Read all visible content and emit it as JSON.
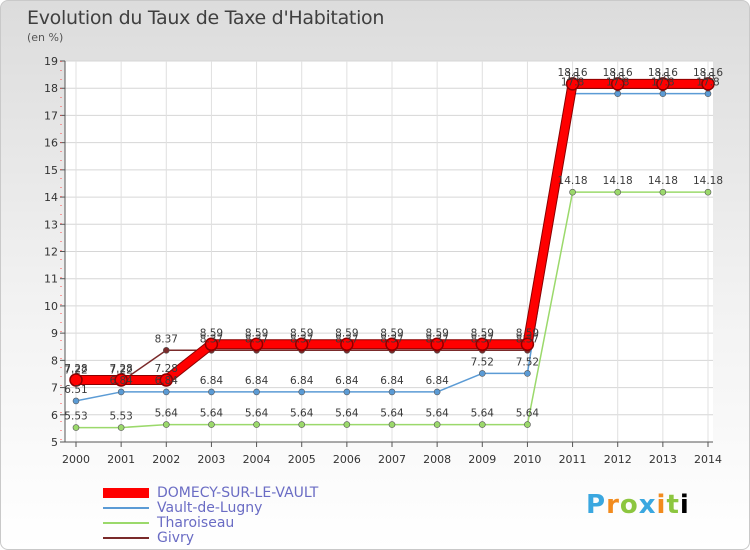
{
  "header": {
    "title": "Evolution du Taux de Taxe d'Habitation",
    "unit": "(en %)"
  },
  "brand": {
    "text": "Proxiti"
  },
  "chart_data": {
    "type": "line",
    "x": [
      2000,
      2001,
      2002,
      2003,
      2004,
      2005,
      2006,
      2007,
      2008,
      2009,
      2010,
      2011,
      2012,
      2013,
      2014
    ],
    "ylim": [
      5,
      19
    ],
    "yticks": [
      5,
      6,
      7,
      8,
      9,
      10,
      11,
      12,
      13,
      14,
      15,
      16,
      17,
      18,
      19
    ],
    "grid": true,
    "legend_position": "bottom-left",
    "series": [
      {
        "name": "DOMECY-SUR-LE-VAULT",
        "color": "#ff0000",
        "values": [
          7.28,
          7.28,
          7.28,
          8.59,
          8.59,
          8.59,
          8.59,
          8.59,
          8.59,
          8.59,
          8.59,
          18.16,
          18.16,
          18.16,
          18.16
        ]
      },
      {
        "name": "Vault-de-Lugny",
        "color": "#5b9bd5",
        "values": [
          6.51,
          6.84,
          6.84,
          6.84,
          6.84,
          6.84,
          6.84,
          6.84,
          6.84,
          7.52,
          7.52,
          17.8,
          17.8,
          17.8,
          17.8
        ]
      },
      {
        "name": "Tharoiseau",
        "color": "#9bd96b",
        "values": [
          5.53,
          5.53,
          5.64,
          5.64,
          5.64,
          5.64,
          5.64,
          5.64,
          5.64,
          5.64,
          5.64,
          14.18,
          14.18,
          14.18,
          14.18
        ]
      },
      {
        "name": "Givry",
        "color": "#7a2a2a",
        "values": [
          7.22,
          7.22,
          8.37,
          8.37,
          8.37,
          8.37,
          8.37,
          8.37,
          8.37,
          8.37,
          8.37,
          18.0,
          18.0,
          18.0,
          18.0
        ]
      }
    ],
    "labels": [
      {
        "series": 0,
        "text": [
          "7.28",
          "7.28",
          "7.28",
          "8.59",
          "8.59",
          "8.59",
          "8.59",
          "8.59",
          "8.59",
          "8.59",
          "8.59",
          "18.16",
          "18.16",
          "18.16",
          "18.16"
        ]
      },
      {
        "series": 1,
        "text": [
          "6.51",
          "6.84",
          "6.84",
          "6.84",
          "6.84",
          "6.84",
          "6.84",
          "6.84",
          "6.84",
          "7.52",
          "7.52",
          "17.8",
          "17.8",
          "17.8",
          "17.8"
        ]
      },
      {
        "series": 2,
        "text": [
          "5.53",
          "5.53",
          "5.64",
          "5.64",
          "5.64",
          "5.64",
          "5.64",
          "5.64",
          "5.64",
          "5.64",
          "5.64",
          "14.18",
          "14.18",
          "14.18",
          "14.18"
        ]
      },
      {
        "series": 3,
        "text": [
          "7.22",
          "7.22",
          "8.37",
          "8.37",
          "8.37",
          "8.37",
          "8.37",
          "8.37",
          "8.37",
          "8.37",
          "8.37",
          "18",
          "18",
          "18",
          "18"
        ]
      }
    ]
  }
}
